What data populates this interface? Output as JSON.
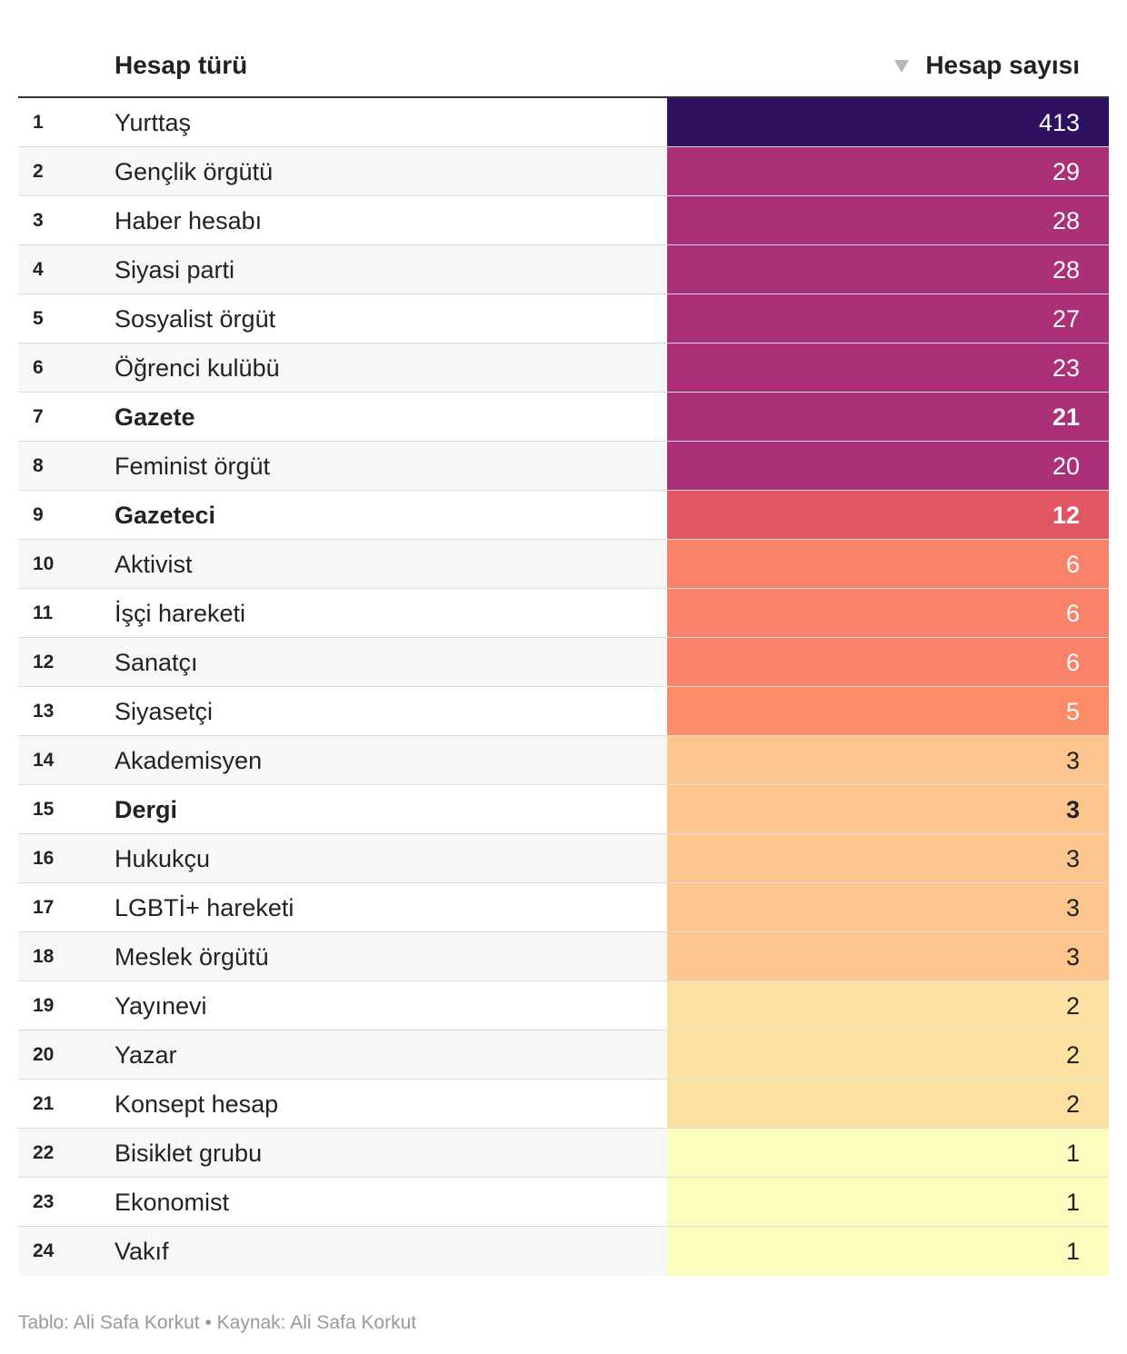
{
  "header": {
    "col_type": "Hesap türü",
    "col_count": "Hesap sayısı",
    "sort_icon": "triangle-down-icon"
  },
  "footer": "Tablo: Ali Safa Korkut • Kaynak: Ali Safa Korkut",
  "chart_data": {
    "type": "table",
    "columns": [
      "Hesap türü",
      "Hesap sayısı"
    ],
    "rows": [
      {
        "rank": "1",
        "label": "Yurttaş",
        "value": 413,
        "bold": false,
        "color": "#2d1160",
        "text_color": "#ffffff"
      },
      {
        "rank": "2",
        "label": "Gençlik örgütü",
        "value": 29,
        "bold": false,
        "color": "#ab3078",
        "text_color": "#ffffff"
      },
      {
        "rank": "3",
        "label": "Haber hesabı",
        "value": 28,
        "bold": false,
        "color": "#ab3078",
        "text_color": "#ffffff"
      },
      {
        "rank": "4",
        "label": "Siyasi parti",
        "value": 28,
        "bold": false,
        "color": "#ab3078",
        "text_color": "#ffffff"
      },
      {
        "rank": "5",
        "label": "Sosyalist örgüt",
        "value": 27,
        "bold": false,
        "color": "#ab3078",
        "text_color": "#ffffff"
      },
      {
        "rank": "6",
        "label": "Öğrenci kulübü",
        "value": 23,
        "bold": false,
        "color": "#ab3078",
        "text_color": "#ffffff"
      },
      {
        "rank": "7",
        "label": "Gazete",
        "value": 21,
        "bold": true,
        "color": "#ab3078",
        "text_color": "#ffffff"
      },
      {
        "rank": "8",
        "label": "Feminist örgüt",
        "value": 20,
        "bold": false,
        "color": "#ab3078",
        "text_color": "#ffffff"
      },
      {
        "rank": "9",
        "label": "Gazeteci",
        "value": 12,
        "bold": true,
        "color": "#e25563",
        "text_color": "#ffffff"
      },
      {
        "rank": "10",
        "label": "Aktivist",
        "value": 6,
        "bold": false,
        "color": "#f8836a",
        "text_color": "#ffffff"
      },
      {
        "rank": "11",
        "label": "İşçi hareketi",
        "value": 6,
        "bold": false,
        "color": "#f8836a",
        "text_color": "#ffffff"
      },
      {
        "rank": "12",
        "label": "Sanatçı",
        "value": 6,
        "bold": false,
        "color": "#f8836a",
        "text_color": "#ffffff"
      },
      {
        "rank": "13",
        "label": "Siyasetçi",
        "value": 5,
        "bold": false,
        "color": "#fc8c68",
        "text_color": "#ffffff"
      },
      {
        "rank": "14",
        "label": "Akademisyen",
        "value": 3,
        "bold": false,
        "color": "#fec68f",
        "text_color": "#222222"
      },
      {
        "rank": "15",
        "label": "Dergi",
        "value": 3,
        "bold": true,
        "color": "#fec68f",
        "text_color": "#222222"
      },
      {
        "rank": "16",
        "label": "Hukukçu",
        "value": 3,
        "bold": false,
        "color": "#fec68f",
        "text_color": "#222222"
      },
      {
        "rank": "17",
        "label": "LGBTİ+ hareketi",
        "value": 3,
        "bold": false,
        "color": "#fec68f",
        "text_color": "#222222"
      },
      {
        "rank": "18",
        "label": "Meslek örgütü",
        "value": 3,
        "bold": false,
        "color": "#fec68f",
        "text_color": "#222222"
      },
      {
        "rank": "19",
        "label": "Yayınevi",
        "value": 2,
        "bold": false,
        "color": "#fde1a3",
        "text_color": "#222222"
      },
      {
        "rank": "20",
        "label": "Yazar",
        "value": 2,
        "bold": false,
        "color": "#fde1a3",
        "text_color": "#222222"
      },
      {
        "rank": "21",
        "label": "Konsept hesap",
        "value": 2,
        "bold": false,
        "color": "#fde1a3",
        "text_color": "#222222"
      },
      {
        "rank": "22",
        "label": "Bisiklet grubu",
        "value": 1,
        "bold": false,
        "color": "#fcfdbf",
        "text_color": "#222222"
      },
      {
        "rank": "23",
        "label": "Ekonomist",
        "value": 1,
        "bold": false,
        "color": "#fcfdbf",
        "text_color": "#222222"
      },
      {
        "rank": "24",
        "label": "Vakıf",
        "value": 1,
        "bold": false,
        "color": "#fcfdbf",
        "text_color": "#222222"
      }
    ]
  }
}
